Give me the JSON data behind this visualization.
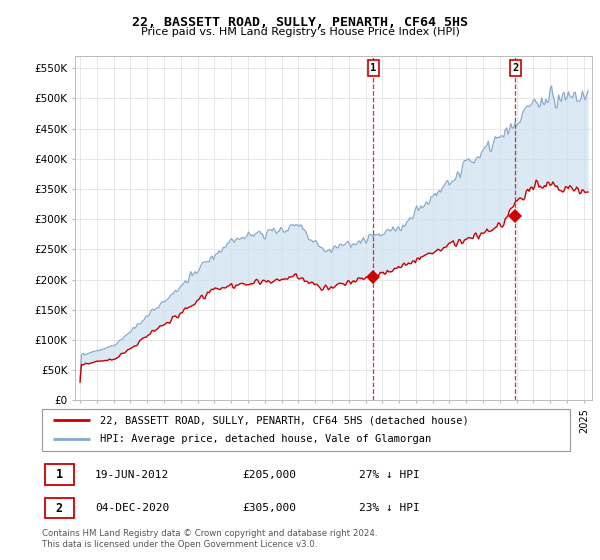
{
  "title": "22, BASSETT ROAD, SULLY, PENARTH, CF64 5HS",
  "subtitle": "Price paid vs. HM Land Registry's House Price Index (HPI)",
  "ylim": [
    0,
    570000
  ],
  "xlim_start": 1994.7,
  "xlim_end": 2025.5,
  "transaction1_x": 2012.47,
  "transaction1_y": 205000,
  "transaction1_label": "19-JUN-2012",
  "transaction1_price": "£205,000",
  "transaction1_hpi": "27% ↓ HPI",
  "transaction2_x": 2020.92,
  "transaction2_y": 305000,
  "transaction2_label": "04-DEC-2020",
  "transaction2_price": "£305,000",
  "transaction2_hpi": "23% ↓ HPI",
  "line1_color": "#cc0000",
  "line2_color": "#88aacc",
  "fill_color": "#cce0f0",
  "marker_color": "#cc0000",
  "grid_color": "#dddddd",
  "background_color": "#ffffff",
  "legend_label1": "22, BASSETT ROAD, SULLY, PENARTH, CF64 5HS (detached house)",
  "legend_label2": "HPI: Average price, detached house, Vale of Glamorgan",
  "footer": "Contains HM Land Registry data © Crown copyright and database right 2024.\nThis data is licensed under the Open Government Licence v3.0."
}
